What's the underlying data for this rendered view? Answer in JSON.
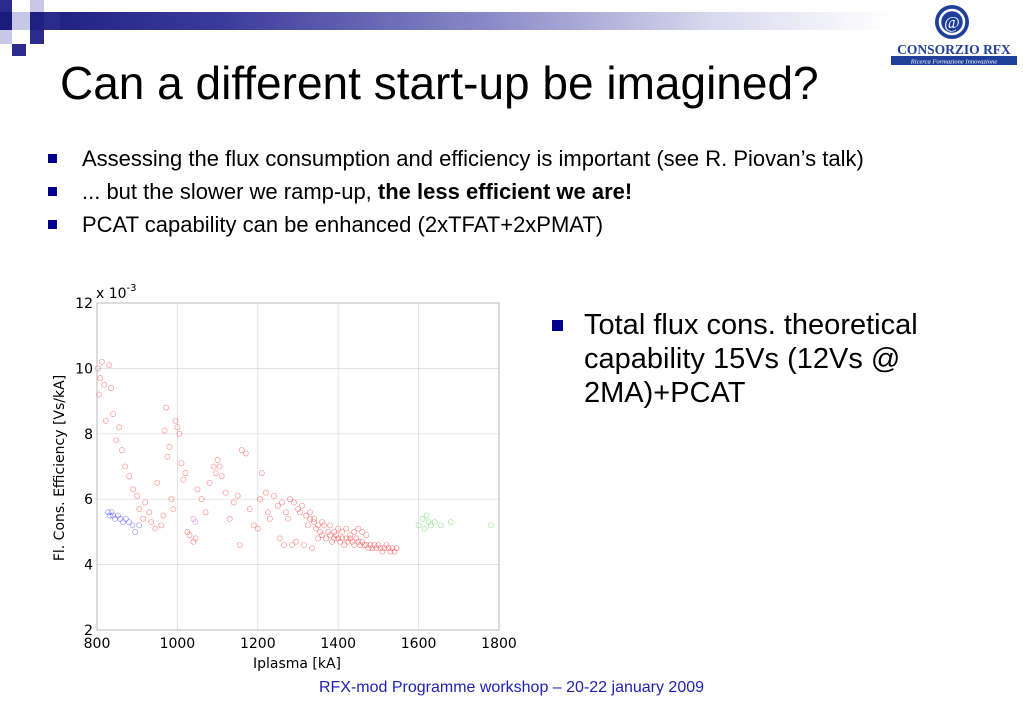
{
  "slide": {
    "title": "Can a different start-up be imagined?",
    "bullets": [
      {
        "text": "Assessing the flux consumption and efficiency is important (see R. Piovan’s talk)"
      },
      {
        "text": "... but the slower we ramp-up, ",
        "bold": "the less efficient we are!"
      },
      {
        "text": "PCAT capability can be enhanced (2xTFAT+2xPMAT)"
      }
    ],
    "right_bullet": "Total flux cons. theoretical capability 15Vs (12Vs @ 2MA)+PCAT",
    "footer": "RFX-mod Programme workshop – 20-22 january 2009",
    "logo": {
      "name": "CONSORZIO RFX",
      "tagline": "Ricerca Formazione Innovazione"
    }
  },
  "chart_data": {
    "type": "scatter",
    "xlabel": "Iplasma [kA]",
    "ylabel": "Fl. Cons. Efficiency [Vs/kA]",
    "multiplier_label": "x 10",
    "multiplier_exp": "-3",
    "xlim": [
      800,
      1800
    ],
    "ylim": [
      2,
      12
    ],
    "xticks": [
      800,
      1000,
      1200,
      1400,
      1600,
      1800
    ],
    "yticks": [
      2,
      4,
      6,
      8,
      10,
      12
    ],
    "grid": true,
    "series": [
      {
        "color": "#ff2020",
        "points": [
          [
            802,
            10.0
          ],
          [
            805,
            9.2
          ],
          [
            808,
            9.7
          ],
          [
            812,
            10.2
          ],
          [
            818,
            9.5
          ],
          [
            822,
            8.4
          ],
          [
            830,
            10.1
          ],
          [
            835,
            9.4
          ],
          [
            840,
            8.6
          ],
          [
            848,
            7.8
          ],
          [
            855,
            8.2
          ],
          [
            862,
            7.5
          ],
          [
            870,
            7.0
          ],
          [
            880,
            6.7
          ],
          [
            890,
            6.3
          ],
          [
            900,
            6.1
          ],
          [
            905,
            5.7
          ],
          [
            915,
            5.4
          ],
          [
            920,
            5.9
          ],
          [
            930,
            5.6
          ],
          [
            935,
            5.3
          ],
          [
            945,
            5.1
          ],
          [
            950,
            6.5
          ],
          [
            960,
            5.2
          ],
          [
            965,
            5.5
          ],
          [
            968,
            8.1
          ],
          [
            972,
            8.8
          ],
          [
            975,
            7.3
          ],
          [
            980,
            7.6
          ],
          [
            985,
            6.0
          ],
          [
            990,
            5.7
          ],
          [
            995,
            8.4
          ],
          [
            1000,
            8.2
          ],
          [
            1005,
            8.0
          ],
          [
            1010,
            7.1
          ],
          [
            1015,
            6.6
          ],
          [
            1020,
            6.8
          ],
          [
            1025,
            5.0
          ],
          [
            1030,
            4.9
          ],
          [
            1040,
            4.7
          ],
          [
            1045,
            4.8
          ],
          [
            1050,
            6.3
          ],
          [
            1060,
            6.0
          ],
          [
            1070,
            5.6
          ],
          [
            1080,
            6.5
          ],
          [
            1090,
            7.0
          ],
          [
            1095,
            6.8
          ],
          [
            1100,
            7.2
          ],
          [
            1105,
            7.0
          ],
          [
            1110,
            6.7
          ],
          [
            1120,
            6.2
          ],
          [
            1130,
            5.4
          ],
          [
            1140,
            5.9
          ],
          [
            1150,
            6.1
          ],
          [
            1155,
            4.6
          ],
          [
            1160,
            7.5
          ],
          [
            1170,
            7.4
          ],
          [
            1180,
            5.7
          ],
          [
            1190,
            5.2
          ],
          [
            1200,
            5.1
          ],
          [
            1205,
            6.0
          ],
          [
            1210,
            6.8
          ],
          [
            1220,
            6.2
          ],
          [
            1225,
            5.6
          ],
          [
            1230,
            5.4
          ],
          [
            1240,
            6.1
          ],
          [
            1250,
            5.8
          ],
          [
            1255,
            4.8
          ],
          [
            1260,
            5.9
          ],
          [
            1265,
            4.6
          ],
          [
            1270,
            5.6
          ],
          [
            1275,
            5.4
          ],
          [
            1280,
            6.0
          ],
          [
            1285,
            4.6
          ],
          [
            1290,
            5.9
          ],
          [
            1295,
            4.7
          ],
          [
            1300,
            5.7
          ],
          [
            1305,
            5.6
          ],
          [
            1310,
            5.8
          ],
          [
            1315,
            4.6
          ],
          [
            1320,
            5.5
          ],
          [
            1325,
            5.2
          ],
          [
            1330,
            5.4
          ],
          [
            1335,
            4.5
          ],
          [
            1340,
            5.3
          ],
          [
            1345,
            5.1
          ],
          [
            1350,
            4.8
          ],
          [
            1355,
            5.0
          ],
          [
            1360,
            4.9
          ],
          [
            1365,
            5.2
          ],
          [
            1370,
            4.8
          ],
          [
            1375,
            5.0
          ],
          [
            1380,
            4.9
          ],
          [
            1385,
            4.7
          ],
          [
            1390,
            4.8
          ],
          [
            1395,
            4.9
          ],
          [
            1400,
            4.8
          ],
          [
            1405,
            4.7
          ],
          [
            1410,
            4.8
          ],
          [
            1415,
            4.6
          ],
          [
            1420,
            4.8
          ],
          [
            1425,
            4.7
          ],
          [
            1430,
            4.8
          ],
          [
            1435,
            4.7
          ],
          [
            1440,
            4.6
          ],
          [
            1445,
            4.8
          ],
          [
            1450,
            4.7
          ],
          [
            1455,
            4.6
          ],
          [
            1460,
            4.7
          ],
          [
            1465,
            4.6
          ],
          [
            1470,
            4.6
          ],
          [
            1475,
            4.5
          ],
          [
            1480,
            4.6
          ],
          [
            1485,
            4.5
          ],
          [
            1490,
            4.6
          ],
          [
            1495,
            4.5
          ],
          [
            1500,
            4.6
          ],
          [
            1505,
            4.5
          ],
          [
            1510,
            4.4
          ],
          [
            1515,
            4.5
          ],
          [
            1520,
            4.6
          ],
          [
            1525,
            4.5
          ],
          [
            1530,
            4.4
          ],
          [
            1535,
            4.5
          ],
          [
            1540,
            4.4
          ],
          [
            1545,
            4.5
          ],
          [
            1440,
            5.0
          ],
          [
            1450,
            5.1
          ],
          [
            1460,
            5.0
          ],
          [
            1470,
            4.9
          ],
          [
            1410,
            5.0
          ],
          [
            1420,
            5.1
          ],
          [
            1430,
            4.9
          ],
          [
            1380,
            5.2
          ],
          [
            1390,
            5.0
          ],
          [
            1400,
            5.1
          ],
          [
            1360,
            5.3
          ],
          [
            1350,
            5.2
          ],
          [
            1340,
            5.4
          ],
          [
            1330,
            5.6
          ]
        ]
      },
      {
        "color": "#3030ff",
        "points": [
          [
            828,
            5.6
          ],
          [
            832,
            5.5
          ],
          [
            836,
            5.6
          ],
          [
            840,
            5.5
          ],
          [
            845,
            5.4
          ],
          [
            852,
            5.5
          ],
          [
            858,
            5.4
          ],
          [
            865,
            5.3
          ],
          [
            872,
            5.4
          ],
          [
            880,
            5.3
          ],
          [
            888,
            5.2
          ],
          [
            895,
            5.0
          ],
          [
            905,
            5.2
          ]
        ]
      },
      {
        "color": "#e040e0",
        "points": [
          [
            1040,
            5.4
          ],
          [
            1045,
            5.3
          ]
        ]
      },
      {
        "color": "#30d030",
        "points": [
          [
            1600,
            5.2
          ],
          [
            1610,
            5.4
          ],
          [
            1615,
            5.1
          ],
          [
            1620,
            5.5
          ],
          [
            1625,
            5.3
          ],
          [
            1630,
            5.2
          ],
          [
            1640,
            5.3
          ],
          [
            1655,
            5.2
          ],
          [
            1680,
            5.3
          ],
          [
            1780,
            5.2
          ]
        ]
      }
    ]
  }
}
